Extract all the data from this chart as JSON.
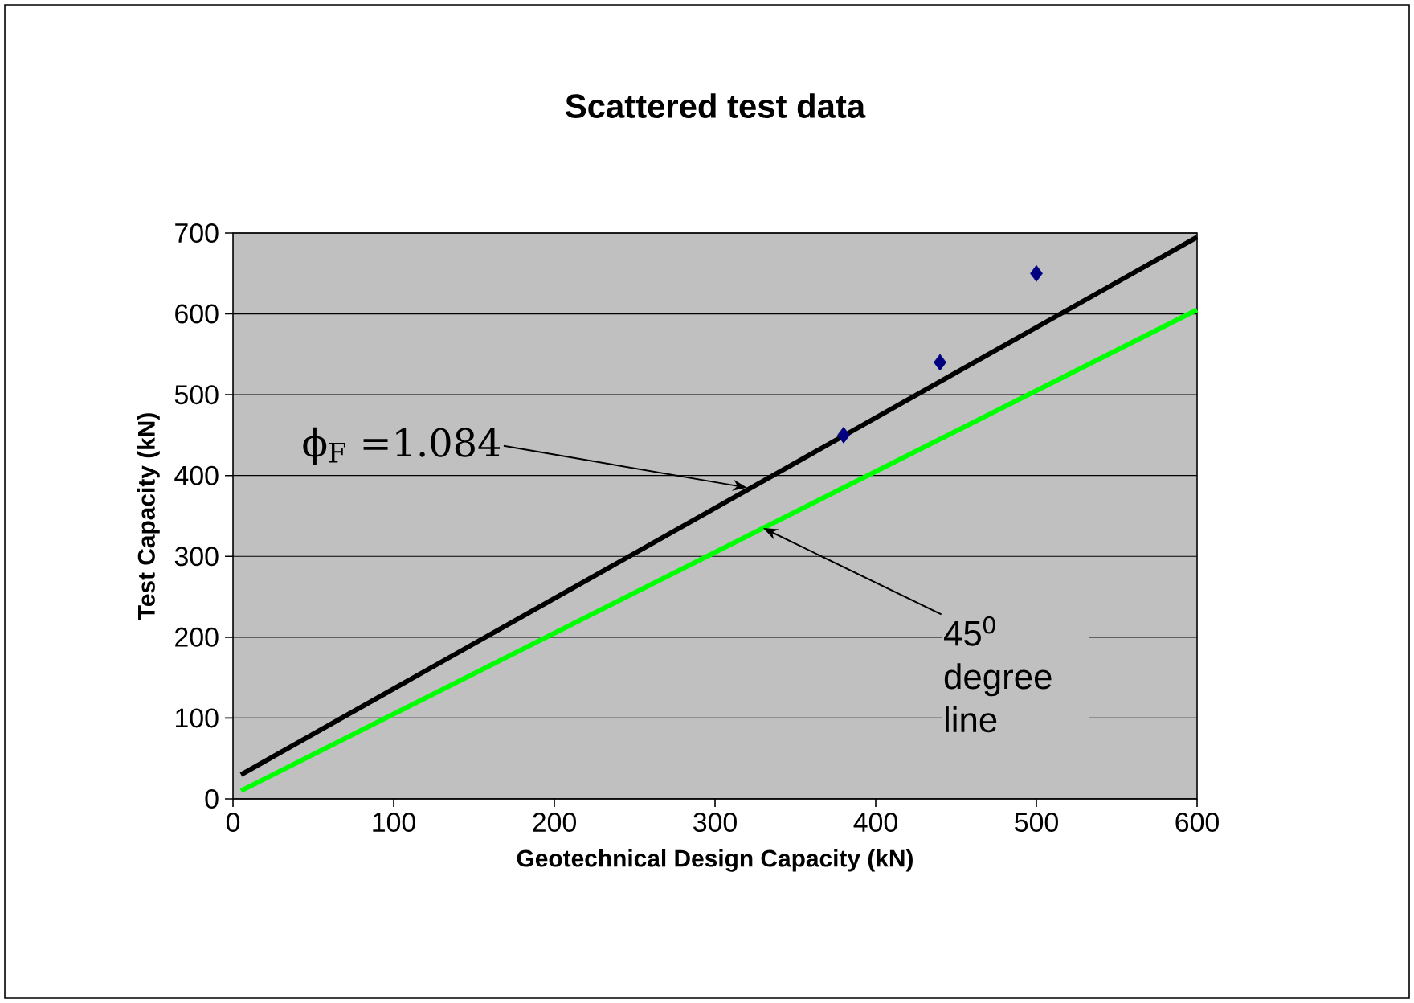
{
  "chart_data": {
    "type": "scatter",
    "title": "Scattered test data",
    "xlabel": "Geotechnical Design Capacity (kN)",
    "ylabel": "Test Capacity (kN)",
    "series": [
      {
        "color": "#000080",
        "x": [
          380,
          440,
          500
        ],
        "values": [
          450,
          540,
          650
        ]
      },
      {
        "type": "line",
        "marker": "none",
        "color": "#000000",
        "x": [
          5,
          600
        ],
        "values": [
          30,
          695
        ]
      },
      {
        "type": "line",
        "marker": "none",
        "color": "#00ff00",
        "x": [
          5,
          600
        ],
        "values": [
          10,
          605
        ]
      }
    ],
    "annotations": [
      {
        "text": "ϕ$_{F}$ =1.084",
        "x": 320,
        "y": 385
      },
      {
        "text": "45$^{0}$ degree line",
        "x": 330,
        "y": 335
      }
    ],
    "xlim": [
      0,
      600
    ],
    "ylim": [
      0,
      700
    ],
    "xticks": [
      0,
      100,
      200,
      300,
      400,
      500,
      600
    ],
    "yticks": [
      0,
      100,
      200,
      300,
      400,
      500,
      600,
      700
    ],
    "grid": "y",
    "marker": "diamond"
  }
}
